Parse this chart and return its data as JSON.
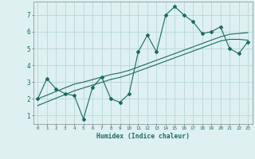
{
  "xlabel": "Humidex (Indice chaleur)",
  "ylabel": "",
  "bg_color": "#dff0f0",
  "grid_color": "#b8d8d8",
  "line_color": "#1a6b60",
  "x_data": [
    0,
    1,
    2,
    3,
    4,
    5,
    6,
    7,
    8,
    9,
    10,
    11,
    12,
    13,
    14,
    15,
    16,
    17,
    18,
    19,
    20,
    21,
    22,
    23
  ],
  "y_main": [
    2.0,
    3.2,
    2.6,
    2.3,
    2.2,
    0.8,
    2.7,
    3.3,
    2.0,
    1.8,
    2.3,
    4.8,
    5.8,
    4.8,
    7.0,
    7.5,
    7.0,
    6.6,
    5.9,
    6.0,
    6.3,
    5.0,
    4.7,
    5.4
  ],
  "y_trend1": [
    2.0,
    2.22,
    2.44,
    2.66,
    2.88,
    3.0,
    3.15,
    3.3,
    3.45,
    3.55,
    3.7,
    3.9,
    4.1,
    4.3,
    4.5,
    4.7,
    4.9,
    5.1,
    5.3,
    5.5,
    5.7,
    5.85,
    5.9,
    5.95
  ],
  "y_trend2": [
    1.6,
    1.82,
    2.04,
    2.26,
    2.48,
    2.65,
    2.82,
    2.99,
    3.16,
    3.28,
    3.45,
    3.65,
    3.85,
    4.05,
    4.25,
    4.45,
    4.65,
    4.85,
    5.05,
    5.25,
    5.45,
    5.55,
    5.55,
    5.5
  ],
  "ylim": [
    0.5,
    7.8
  ],
  "xlim": [
    -0.5,
    23.5
  ],
  "yticks": [
    1,
    2,
    3,
    4,
    5,
    6,
    7
  ],
  "xticks": [
    0,
    1,
    2,
    3,
    4,
    5,
    6,
    7,
    8,
    9,
    10,
    11,
    12,
    13,
    14,
    15,
    16,
    17,
    18,
    19,
    20,
    21,
    22,
    23
  ]
}
